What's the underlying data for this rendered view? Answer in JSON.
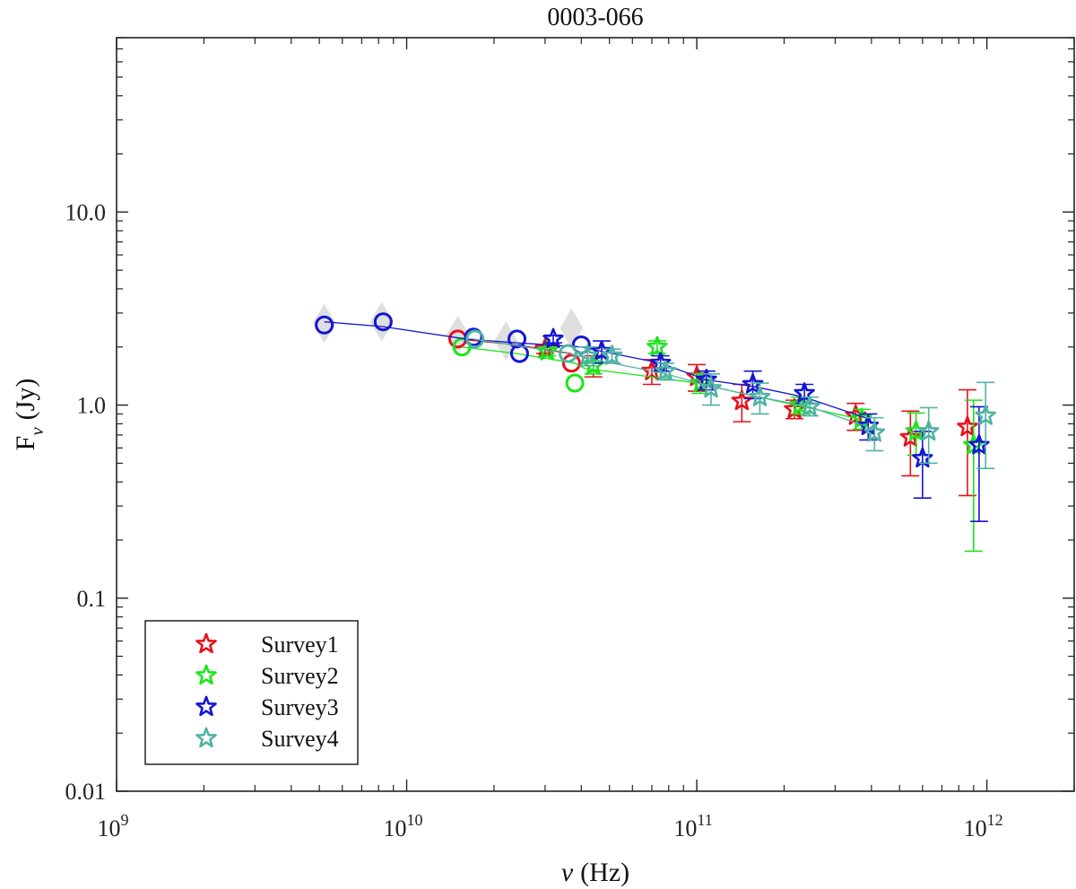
{
  "chart_data": {
    "type": "scatter",
    "title": "0003-066",
    "xscale": "log",
    "yscale": "log",
    "xlim": [
      1000000000.0,
      2000000000000.0
    ],
    "ylim": [
      0.01,
      80
    ],
    "xlabel": {
      "symbol": "ν",
      "unit": "(Hz)"
    },
    "ylabel": {
      "base": "F",
      "sub": "ν",
      "unit": "(Jy)"
    },
    "x_ticks": [
      {
        "value": 1000000000.0,
        "base": "10",
        "exp": "9"
      },
      {
        "value": 10000000000.0,
        "base": "10",
        "exp": "10"
      },
      {
        "value": 100000000000.0,
        "base": "10",
        "exp": "11"
      },
      {
        "value": 1000000000000.0,
        "base": "10",
        "exp": "12"
      }
    ],
    "y_ticks": [
      {
        "value": 0.01,
        "label": "0.01"
      },
      {
        "value": 0.1,
        "label": "0.1"
      },
      {
        "value": 1,
        "label": "1.0"
      },
      {
        "value": 10,
        "label": "10.0"
      }
    ],
    "legend": {
      "position": "bottom-left",
      "entries": [
        "Survey1",
        "Survey2",
        "Survey3",
        "Survey4"
      ]
    },
    "gray_points": [
      {
        "x": 5200000000.0,
        "y": 2.65
      },
      {
        "x": 8200000000.0,
        "y": 2.7
      },
      {
        "x": 15000000000.0,
        "y": 2.3
      },
      {
        "x": 22000000000.0,
        "y": 2.15
      },
      {
        "x": 37000000000.0,
        "y": 2.5
      }
    ],
    "series": [
      {
        "name": "Survey1",
        "color": "#e8101a",
        "lines": [
          [
            [
              15000000000.0,
              2.2
            ],
            [
              24000000000.0,
              2.05
            ],
            [
              37000000000.0,
              1.85
            ]
          ]
        ],
        "circles": [
          [
            15000000000.0,
            2.2
          ],
          [
            37000000000.0,
            1.65
          ]
        ],
        "stars": [
          {
            "x": 30000000000.0,
            "y": 1.95,
            "lo": 1.85,
            "hi": 2.05
          },
          {
            "x": 44000000000.0,
            "y": 1.6,
            "lo": 1.4,
            "hi": 1.8
          },
          {
            "x": 70000000000.0,
            "y": 1.5,
            "lo": 1.28,
            "hi": 1.72
          },
          {
            "x": 100000000000.0,
            "y": 1.4,
            "lo": 1.18,
            "hi": 1.62
          },
          {
            "x": 143000000000.0,
            "y": 1.05,
            "lo": 0.82,
            "hi": 1.28
          },
          {
            "x": 217000000000.0,
            "y": 0.95,
            "lo": 0.85,
            "hi": 1.06
          },
          {
            "x": 353000000000.0,
            "y": 0.88,
            "lo": 0.74,
            "hi": 1.02
          },
          {
            "x": 545000000000.0,
            "y": 0.68,
            "lo": 0.43,
            "hi": 0.93
          },
          {
            "x": 857000000000.0,
            "y": 0.77,
            "lo": 0.34,
            "hi": 1.2
          }
        ]
      },
      {
        "name": "Survey2",
        "color": "#19e619",
        "lines": [
          [
            [
              15500000000.0,
              2.0
            ],
            [
              24000000000.0,
              1.85
            ],
            [
              38000000000.0,
              1.65
            ],
            [
              41000000000.0,
              1.55
            ],
            [
              70000000000.0,
              1.4
            ],
            [
              100000000000.0,
              1.3
            ],
            [
              143000000000.0,
              1.15
            ],
            [
              220000000000.0,
              1.0
            ],
            [
              360000000000.0,
              0.85
            ]
          ]
        ],
        "circles": [
          [
            15500000000.0,
            2.0
          ],
          [
            38000000000.0,
            1.3
          ]
        ],
        "stars": [
          {
            "x": 30500000000.0,
            "y": 1.9,
            "lo": 1.8,
            "hi": 2.0
          },
          {
            "x": 44000000000.0,
            "y": 1.6,
            "lo": 1.45,
            "hi": 1.75
          },
          {
            "x": 73000000000.0,
            "y": 2.0,
            "lo": 1.85,
            "hi": 2.15
          },
          {
            "x": 103000000000.0,
            "y": 1.3,
            "lo": 1.15,
            "hi": 1.45
          },
          {
            "x": 227000000000.0,
            "y": 1.0,
            "lo": 0.9,
            "hi": 1.1
          },
          {
            "x": 370000000000.0,
            "y": 0.85,
            "lo": 0.75,
            "hi": 0.95
          },
          {
            "x": 570000000000.0,
            "y": 0.73,
            "lo": 0.55,
            "hi": 0.91
          },
          {
            "x": 900000000000.0,
            "y": 0.62,
            "lo": 0.175,
            "hi": 1.06
          }
        ]
      },
      {
        "name": "Survey3",
        "color": "#1414d4",
        "lines": [
          [
            [
              5200000000.0,
              2.7
            ],
            [
              8300000000.0,
              2.55
            ],
            [
              16000000000.0,
              2.2
            ],
            [
              24000000000.0,
              2.1
            ],
            [
              40000000000.0,
              2.0
            ],
            [
              47000000000.0,
              1.9
            ],
            [
              75000000000.0,
              1.65
            ],
            [
              108000000000.0,
              1.35
            ],
            [
              156000000000.0,
              1.25
            ],
            [
              235000000000.0,
              1.1
            ],
            [
              390000000000.0,
              0.85
            ]
          ]
        ],
        "circles": [
          [
            5200000000.0,
            2.6
          ],
          [
            8300000000.0,
            2.7
          ],
          [
            17000000000.0,
            2.25
          ],
          [
            24000000000.0,
            2.2
          ],
          [
            24500000000.0,
            1.85
          ],
          [
            40000000000.0,
            2.05
          ]
        ],
        "stars": [
          {
            "x": 32000000000.0,
            "y": 2.2,
            "lo": 2.1,
            "hi": 2.3
          },
          {
            "x": 47000000000.0,
            "y": 1.9,
            "lo": 1.65,
            "hi": 2.15
          },
          {
            "x": 75000000000.0,
            "y": 1.65,
            "lo": 1.5,
            "hi": 1.8
          },
          {
            "x": 108000000000.0,
            "y": 1.35,
            "lo": 1.2,
            "hi": 1.5
          },
          {
            "x": 156000000000.0,
            "y": 1.28,
            "lo": 1.08,
            "hi": 1.5
          },
          {
            "x": 235000000000.0,
            "y": 1.15,
            "lo": 1.02,
            "hi": 1.28
          },
          {
            "x": 390000000000.0,
            "y": 0.78,
            "lo": 0.66,
            "hi": 0.9
          },
          {
            "x": 600000000000.0,
            "y": 0.53,
            "lo": 0.33,
            "hi": 0.73
          },
          {
            "x": 940000000000.0,
            "y": 0.62,
            "lo": 0.25,
            "hi": 0.98
          }
        ]
      },
      {
        "name": "Survey4",
        "color": "#4fb3a3",
        "lines": [
          [
            [
              17000000000.0,
              2.2
            ],
            [
              36000000000.0,
              1.85
            ],
            [
              42000000000.0,
              1.75
            ],
            [
              78000000000.0,
              1.45
            ],
            [
              112000000000.0,
              1.25
            ],
            [
              165000000000.0,
              1.1
            ],
            [
              245000000000.0,
              0.98
            ],
            [
              410000000000.0,
              0.75
            ]
          ]
        ],
        "circles": [
          [
            17200000000.0,
            2.2
          ],
          [
            36000000000.0,
            1.85
          ]
        ],
        "stars": [
          {
            "x": 42000000000.0,
            "y": 1.8,
            "lo": 1.6,
            "hi": 2.0
          },
          {
            "x": 51000000000.0,
            "y": 1.8,
            "lo": 1.65,
            "hi": 1.95
          },
          {
            "x": 78000000000.0,
            "y": 1.5,
            "lo": 1.35,
            "hi": 1.65
          },
          {
            "x": 112000000000.0,
            "y": 1.22,
            "lo": 1.0,
            "hi": 1.45
          },
          {
            "x": 165000000000.0,
            "y": 1.1,
            "lo": 0.9,
            "hi": 1.3
          },
          {
            "x": 245000000000.0,
            "y": 0.98,
            "lo": 0.88,
            "hi": 1.1
          },
          {
            "x": 410000000000.0,
            "y": 0.72,
            "lo": 0.58,
            "hi": 0.86
          },
          {
            "x": 630000000000.0,
            "y": 0.73,
            "lo": 0.5,
            "hi": 0.97
          },
          {
            "x": 990000000000.0,
            "y": 0.88,
            "lo": 0.47,
            "hi": 1.31
          }
        ]
      }
    ]
  }
}
